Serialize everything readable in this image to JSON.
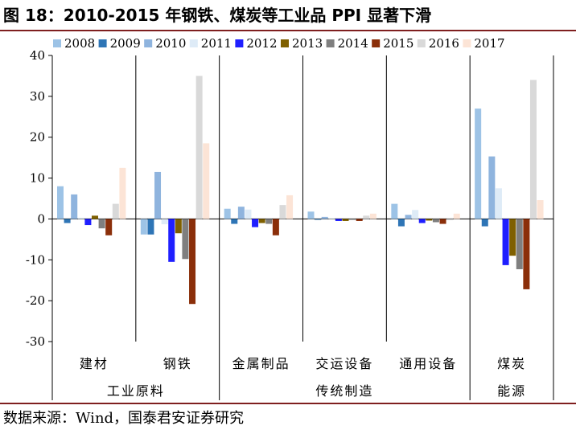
{
  "figure": {
    "title": "图 18：2010-2015 年钢铁、煤炭等工业品 PPI 显著下滑",
    "source": "数据来源：Wind，国泰君安证券研究"
  },
  "colors": {
    "rule": "#7f1f1f",
    "axis": "#000000",
    "series": [
      "#9dc3e6",
      "#2e75b6",
      "#8fb4de",
      "#deebf7",
      "#1f1fff",
      "#7f6000",
      "#7f7f7f",
      "#8b2f0a",
      "#d9d9d9",
      "#fce4d6"
    ]
  },
  "chart_data": {
    "type": "bar",
    "title": "",
    "xlabel": "",
    "ylabel": "",
    "ylim": [
      -30,
      40
    ],
    "yticks": [
      -30,
      -20,
      -10,
      0,
      10,
      20,
      30,
      40
    ],
    "grid": false,
    "legend_position": "top",
    "categories": [
      "建材",
      "钢铁",
      "金属制品",
      "交运设备",
      "通用设备",
      "煤炭"
    ],
    "groups": [
      {
        "label": "工业原料",
        "categories": [
          "建材",
          "钢铁"
        ]
      },
      {
        "label": "传统制造",
        "categories": [
          "金属制品",
          "交运设备",
          "通用设备"
        ]
      },
      {
        "label": "能源",
        "categories": [
          "煤炭"
        ]
      }
    ],
    "series": [
      {
        "name": "2008",
        "values": [
          8.0,
          -3.8,
          2.5,
          1.8,
          3.7,
          27.0
        ]
      },
      {
        "name": "2009",
        "values": [
          -1.0,
          -3.8,
          -1.2,
          -0.2,
          -1.8,
          -1.8
        ]
      },
      {
        "name": "2010",
        "values": [
          6.0,
          11.5,
          3.0,
          0.5,
          1.0,
          15.3
        ]
      },
      {
        "name": "2011",
        "values": [
          0.3,
          -1.3,
          2.3,
          0.2,
          2.2,
          7.5
        ]
      },
      {
        "name": "2012",
        "values": [
          -1.5,
          -10.5,
          -2.0,
          -0.5,
          -1.0,
          -11.3
        ]
      },
      {
        "name": "2013",
        "values": [
          0.8,
          -3.5,
          -1.0,
          -0.5,
          -0.4,
          -9.0
        ]
      },
      {
        "name": "2014",
        "values": [
          -2.3,
          -9.8,
          -1.2,
          -0.2,
          -0.8,
          -12.3
        ]
      },
      {
        "name": "2015",
        "values": [
          -4.0,
          -20.8,
          -4.0,
          -0.5,
          -1.2,
          -17.2
        ]
      },
      {
        "name": "2016",
        "values": [
          3.7,
          35.0,
          3.4,
          0.8,
          -0.3,
          34.0
        ]
      },
      {
        "name": "2017",
        "values": [
          12.5,
          18.5,
          5.8,
          1.3,
          1.3,
          4.6
        ]
      }
    ]
  }
}
